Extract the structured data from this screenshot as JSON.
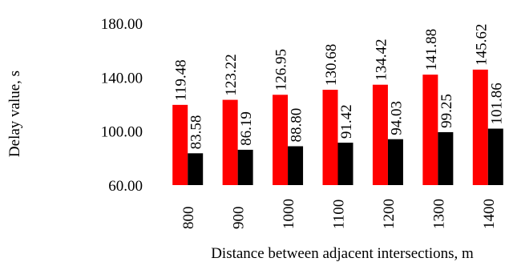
{
  "chart_data": {
    "type": "bar",
    "xlabel": "Distance between adjacent intersections, m",
    "ylabel": "Delay value, s",
    "categories": [
      "800",
      "900",
      "1000",
      "1100",
      "1200",
      "1300",
      "1400"
    ],
    "ylim": [
      60,
      180
    ],
    "yticks": [
      "60.00",
      "100.00",
      "140.00",
      "180.00"
    ],
    "ytick_values": [
      60,
      100,
      140,
      180
    ],
    "grid": false,
    "legend": "none",
    "series": [
      {
        "color": "#ff0000",
        "values": [
          119.48,
          123.22,
          126.95,
          130.68,
          134.42,
          141.88,
          145.62
        ],
        "labels": [
          "119.48",
          "123.22",
          "126.95",
          "130.68",
          "134.42",
          "141.88",
          "145.62"
        ]
      },
      {
        "color": "#000000",
        "values": [
          83.58,
          86.19,
          88.8,
          91.42,
          94.03,
          99.25,
          101.86
        ],
        "labels": [
          "83.58",
          "86.19",
          "88.80",
          "91.42",
          "94.03",
          "99.25",
          "101.86"
        ]
      }
    ]
  }
}
